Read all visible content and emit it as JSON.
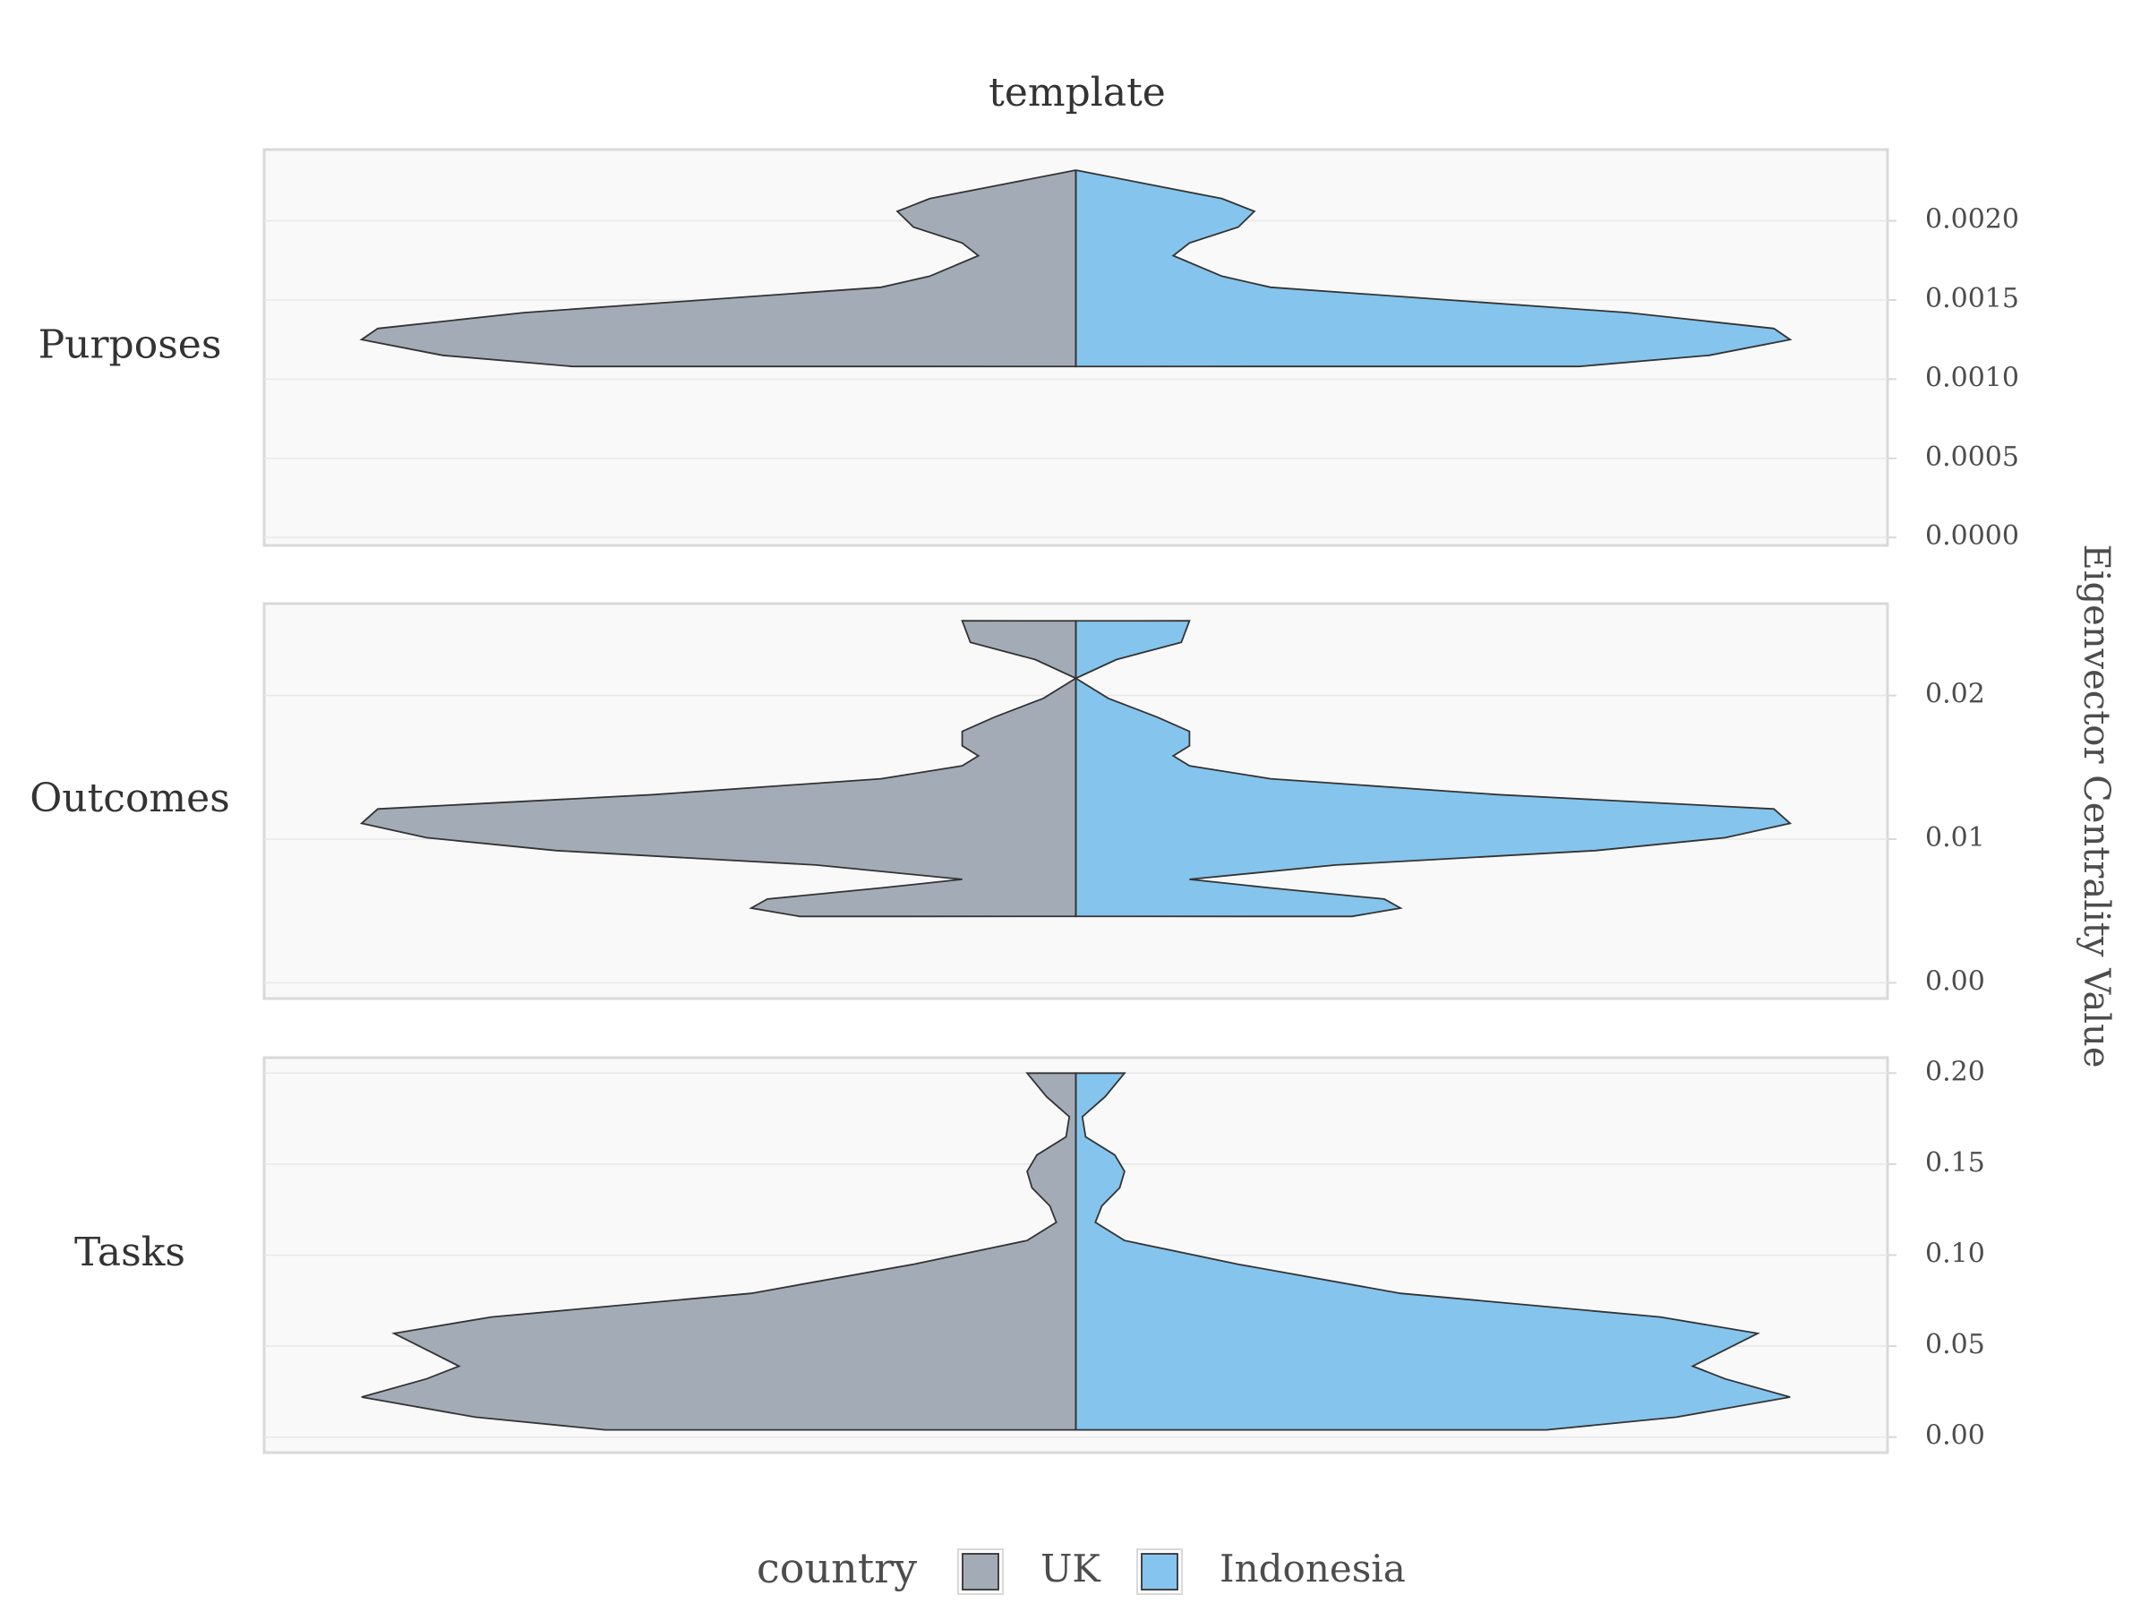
{
  "chart_data": {
    "type": "split-violin",
    "title": "template",
    "ylabel": "Eigenvector Centrality Value",
    "legend": {
      "title": "country",
      "position": "bottom",
      "entries": [
        {
          "name": "UK",
          "color": "#a3acb6"
        },
        {
          "name": "Indonesia",
          "color": "#85c4ec"
        }
      ]
    },
    "panels": [
      {
        "name": "Purposes",
        "ylim": [
          -5e-05,
          0.00245
        ],
        "ticks": [
          0,
          0.0005,
          0.001,
          0.0015,
          0.002
        ],
        "tick_labels": [
          "0.0000",
          "0.0005",
          "0.0010",
          "0.0015",
          "0.0020"
        ],
        "series": [
          {
            "name": "UK",
            "density": [
              [
                0.00108,
                0.31
              ],
              [
                0.00115,
                0.39
              ],
              [
                0.00125,
                0.44
              ],
              [
                0.00132,
                0.43
              ],
              [
                0.00142,
                0.34
              ],
              [
                0.0015,
                0.23
              ],
              [
                0.00158,
                0.12
              ],
              [
                0.00165,
                0.09
              ],
              [
                0.00178,
                0.06
              ],
              [
                0.00186,
                0.07
              ],
              [
                0.00196,
                0.1
              ],
              [
                0.00206,
                0.11
              ],
              [
                0.00214,
                0.09
              ],
              [
                0.00224,
                0.04
              ],
              [
                0.00232,
                0.0
              ]
            ]
          },
          {
            "name": "Indonesia",
            "density": [
              [
                0.00108,
                0.31
              ],
              [
                0.00115,
                0.39
              ],
              [
                0.00125,
                0.44
              ],
              [
                0.00132,
                0.43
              ],
              [
                0.00142,
                0.34
              ],
              [
                0.0015,
                0.23
              ],
              [
                0.00158,
                0.12
              ],
              [
                0.00165,
                0.09
              ],
              [
                0.00178,
                0.06
              ],
              [
                0.00186,
                0.07
              ],
              [
                0.00196,
                0.1
              ],
              [
                0.00206,
                0.11
              ],
              [
                0.00214,
                0.09
              ],
              [
                0.00224,
                0.04
              ],
              [
                0.00232,
                0.0
              ]
            ]
          }
        ]
      },
      {
        "name": "Outcomes",
        "ylim": [
          -0.0011,
          0.0264
        ],
        "ticks": [
          0,
          0.01,
          0.02
        ],
        "tick_labels": [
          "0.00",
          "0.01",
          "0.02"
        ],
        "series": [
          {
            "name": "UK",
            "density": [
              [
                0.00462,
                0.17
              ],
              [
                0.0052,
                0.2
              ],
              [
                0.00583,
                0.19
              ],
              [
                0.0066,
                0.12
              ],
              [
                0.0072,
                0.07
              ],
              [
                0.0082,
                0.16
              ],
              [
                0.0092,
                0.32
              ],
              [
                0.0101,
                0.4
              ],
              [
                0.0111,
                0.44
              ],
              [
                0.0121,
                0.43
              ],
              [
                0.0131,
                0.26
              ],
              [
                0.0142,
                0.12
              ],
              [
                0.0151,
                0.07
              ],
              [
                0.0158,
                0.06
              ],
              [
                0.0165,
                0.07
              ],
              [
                0.0175,
                0.07
              ],
              [
                0.0185,
                0.05
              ],
              [
                0.0198,
                0.02
              ],
              [
                0.0212,
                0.0
              ],
              [
                0.0225,
                0.025
              ],
              [
                0.0237,
                0.065
              ],
              [
                0.0252,
                0.07
              ]
            ]
          },
          {
            "name": "Indonesia",
            "density": [
              [
                0.00462,
                0.17
              ],
              [
                0.0052,
                0.2
              ],
              [
                0.00583,
                0.19
              ],
              [
                0.0066,
                0.12
              ],
              [
                0.0072,
                0.07
              ],
              [
                0.0082,
                0.16
              ],
              [
                0.0092,
                0.32
              ],
              [
                0.0101,
                0.4
              ],
              [
                0.0111,
                0.44
              ],
              [
                0.0121,
                0.43
              ],
              [
                0.0131,
                0.26
              ],
              [
                0.0142,
                0.12
              ],
              [
                0.0151,
                0.07
              ],
              [
                0.0158,
                0.06
              ],
              [
                0.0165,
                0.07
              ],
              [
                0.0175,
                0.07
              ],
              [
                0.0185,
                0.05
              ],
              [
                0.0198,
                0.02
              ],
              [
                0.0212,
                0.0
              ],
              [
                0.0225,
                0.025
              ],
              [
                0.0237,
                0.065
              ],
              [
                0.0252,
                0.07
              ]
            ]
          }
        ]
      },
      {
        "name": "Tasks",
        "ylim": [
          -0.0085,
          0.2085
        ],
        "ticks": [
          0,
          0.05,
          0.1,
          0.15,
          0.2
        ],
        "tick_labels": [
          "0.00",
          "0.05",
          "0.10",
          "0.15",
          "0.20"
        ],
        "series": [
          {
            "name": "UK",
            "density": [
              [
                0.004,
                0.29
              ],
              [
                0.011,
                0.37
              ],
              [
                0.022,
                0.44
              ],
              [
                0.032,
                0.4
              ],
              [
                0.039,
                0.38
              ],
              [
                0.048,
                0.4
              ],
              [
                0.057,
                0.42
              ],
              [
                0.066,
                0.36
              ],
              [
                0.079,
                0.2
              ],
              [
                0.095,
                0.1
              ],
              [
                0.108,
                0.03
              ],
              [
                0.118,
                0.012
              ],
              [
                0.127,
                0.016
              ],
              [
                0.137,
                0.027
              ],
              [
                0.146,
                0.03
              ],
              [
                0.155,
                0.024
              ],
              [
                0.165,
                0.006
              ],
              [
                0.176,
                0.004
              ],
              [
                0.187,
                0.018
              ],
              [
                0.2,
                0.03
              ]
            ]
          },
          {
            "name": "Indonesia",
            "density": [
              [
                0.004,
                0.29
              ],
              [
                0.011,
                0.37
              ],
              [
                0.022,
                0.44
              ],
              [
                0.032,
                0.4
              ],
              [
                0.039,
                0.38
              ],
              [
                0.048,
                0.4
              ],
              [
                0.057,
                0.42
              ],
              [
                0.066,
                0.36
              ],
              [
                0.079,
                0.2
              ],
              [
                0.095,
                0.1
              ],
              [
                0.108,
                0.03
              ],
              [
                0.118,
                0.012
              ],
              [
                0.127,
                0.016
              ],
              [
                0.137,
                0.027
              ],
              [
                0.146,
                0.03
              ],
              [
                0.155,
                0.024
              ],
              [
                0.165,
                0.006
              ],
              [
                0.176,
                0.004
              ],
              [
                0.187,
                0.018
              ],
              [
                0.2,
                0.03
              ]
            ]
          }
        ]
      }
    ]
  }
}
